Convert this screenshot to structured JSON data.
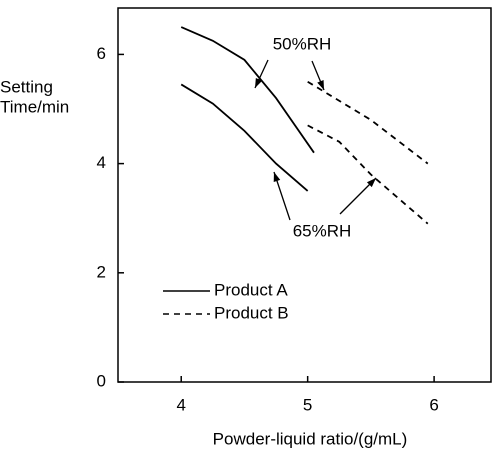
{
  "chart_data": {
    "type": "line",
    "xlabel": "Powder-liquid ratio/(g/mL)",
    "ylabel": [
      "Setting",
      "Time/min"
    ],
    "xlim": [
      3.5,
      6.45
    ],
    "xticks": [
      4,
      5,
      6
    ],
    "ylim": [
      0,
      6.85
    ],
    "yticks": [
      0,
      2,
      4,
      6
    ],
    "color": "#000000",
    "series": [
      {
        "name": "Product A",
        "style": "solid",
        "lines": [
          {
            "x": [
              4.0,
              4.25,
              4.5,
              4.75,
              5.05
            ],
            "values": [
              6.5,
              6.25,
              5.9,
              5.2,
              4.2
            ]
          },
          {
            "x": [
              4.0,
              4.25,
              4.5,
              4.75,
              5.0
            ],
            "values": [
              5.45,
              5.1,
              4.6,
              4.0,
              3.5
            ]
          }
        ]
      },
      {
        "name": "Product B",
        "style": "dashed",
        "lines": [
          {
            "x": [
              5.0,
              5.5,
              5.95
            ],
            "values": [
              5.5,
              4.8,
              4.0
            ]
          },
          {
            "x": [
              5.0,
              5.25,
              5.5,
              5.95
            ],
            "values": [
              4.7,
              4.4,
              3.8,
              2.9
            ]
          }
        ]
      }
    ],
    "annotations": [
      "50%RH",
      "65%RH"
    ]
  }
}
